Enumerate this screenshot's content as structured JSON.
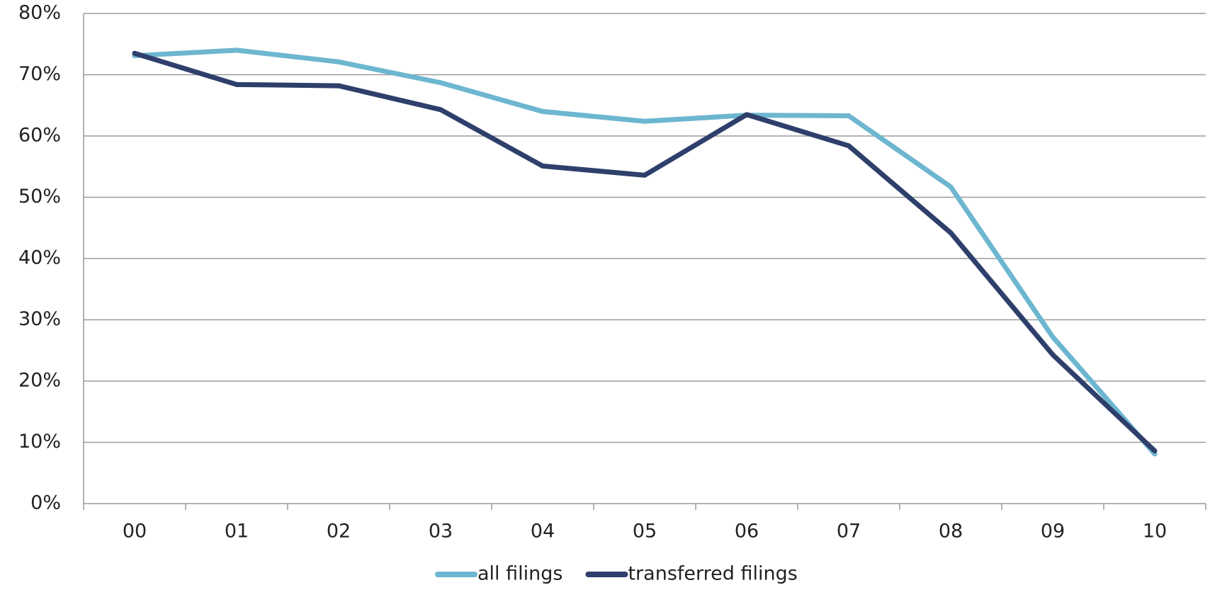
{
  "chart_data": {
    "type": "line",
    "categories": [
      "00",
      "01",
      "02",
      "03",
      "04",
      "05",
      "06",
      "07",
      "08",
      "09",
      "10"
    ],
    "series": [
      {
        "name": "all filings",
        "color": "#6db6d0",
        "values": [
          73.1,
          74.0,
          72.1,
          68.7,
          64.0,
          62.4,
          63.4,
          63.3,
          51.7,
          27.2,
          8.1
        ]
      },
      {
        "name": "transferred filings",
        "color": "#2e3f6b",
        "values": [
          73.5,
          68.4,
          68.2,
          64.3,
          55.1,
          53.6,
          63.5,
          58.4,
          44.2,
          24.3,
          8.6
        ]
      }
    ],
    "ylim": [
      0,
      80
    ],
    "yticks": [
      {
        "value": 0,
        "label": "0%"
      },
      {
        "value": 10,
        "label": "10%"
      },
      {
        "value": 20,
        "label": "20%"
      },
      {
        "value": 30,
        "label": "30%"
      },
      {
        "value": 40,
        "label": "40%"
      },
      {
        "value": 50,
        "label": "50%"
      },
      {
        "value": 60,
        "label": "60%"
      },
      {
        "value": 70,
        "label": "70%"
      },
      {
        "value": 80,
        "label": "80%"
      }
    ],
    "grid": true,
    "legend": "bottom"
  }
}
